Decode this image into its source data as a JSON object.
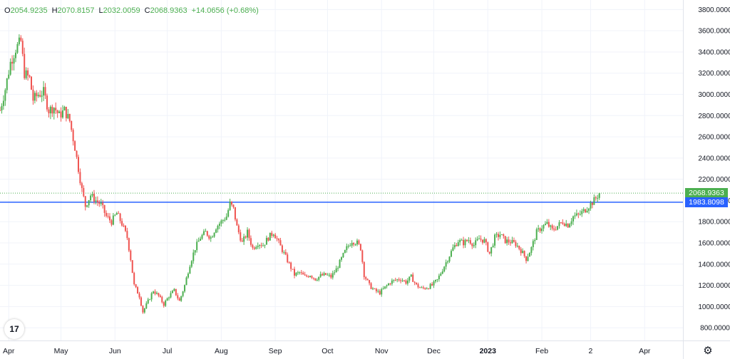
{
  "legend": {
    "open_label": "O",
    "open": "2054.9235",
    "high_label": "H",
    "high": "2070.8157",
    "low_label": "L",
    "low": "2032.0059",
    "close_label": "C",
    "close": "2068.9363",
    "change": "+14.0656 (+0.68%)"
  },
  "price_tags": {
    "last_price": "2068.9363",
    "last_price_color": "#4caf50",
    "hline_price": "1983.8098",
    "hline_color": "#2962ff"
  },
  "logo_text": "17",
  "settings_icon": "gear-icon",
  "colors": {
    "up": "#4caf50",
    "down": "#ef5350",
    "grid": "#f0f3fa",
    "axis_text": "#131722"
  },
  "chart_data": {
    "type": "candlestick",
    "y_ticks": [
      "800.0000",
      "1000.0000",
      "1200.0000",
      "1400.0000",
      "1600.0000",
      "1800.0000",
      "2000.0000",
      "2200.0000",
      "2400.0000",
      "2600.0000",
      "2800.0000",
      "3000.0000",
      "3200.0000",
      "3400.0000",
      "3600.0000",
      "3800.0000"
    ],
    "ylim": [
      680,
      3890
    ],
    "x_ticks": [
      {
        "label": "Apr",
        "day": 5
      },
      {
        "label": "May",
        "day": 35
      },
      {
        "label": "Jun",
        "day": 66
      },
      {
        "label": "Jul",
        "day": 96
      },
      {
        "label": "Aug",
        "day": 127
      },
      {
        "label": "Sep",
        "day": 158
      },
      {
        "label": "Oct",
        "day": 188
      },
      {
        "label": "Nov",
        "day": 219
      },
      {
        "label": "Dec",
        "day": 249
      },
      {
        "label": "2023",
        "day": 280
      },
      {
        "label": "Feb",
        "day": 311
      },
      {
        "label": "2",
        "day": 339
      },
      {
        "label": "Apr",
        "day": 370
      }
    ],
    "x_range_days": [
      0,
      392
    ],
    "horizontal_line": 1983.8098,
    "last_price": 2068.9363,
    "close_path": [
      [
        0,
        2850
      ],
      [
        3,
        3050
      ],
      [
        6,
        3300
      ],
      [
        9,
        3430
      ],
      [
        12,
        3500
      ],
      [
        14,
        3200
      ],
      [
        17,
        3150
      ],
      [
        19,
        2950
      ],
      [
        22,
        3000
      ],
      [
        25,
        3020
      ],
      [
        28,
        2850
      ],
      [
        31,
        2880
      ],
      [
        34,
        2800
      ],
      [
        37,
        2850
      ],
      [
        40,
        2750
      ],
      [
        43,
        2500
      ],
      [
        45,
        2300
      ],
      [
        47,
        2100
      ],
      [
        49,
        1950
      ],
      [
        52,
        2050
      ],
      [
        55,
        2000
      ],
      [
        58,
        1960
      ],
      [
        61,
        1850
      ],
      [
        64,
        1800
      ],
      [
        67,
        1880
      ],
      [
        70,
        1780
      ],
      [
        73,
        1650
      ],
      [
        75,
        1450
      ],
      [
        77,
        1200
      ],
      [
        80,
        1100
      ],
      [
        82,
        950
      ],
      [
        85,
        1050
      ],
      [
        88,
        1150
      ],
      [
        91,
        1100
      ],
      [
        94,
        1020
      ],
      [
        97,
        1100
      ],
      [
        100,
        1150
      ],
      [
        103,
        1050
      ],
      [
        106,
        1200
      ],
      [
        109,
        1400
      ],
      [
        112,
        1550
      ],
      [
        115,
        1650
      ],
      [
        118,
        1700
      ],
      [
        121,
        1650
      ],
      [
        124,
        1750
      ],
      [
        127,
        1800
      ],
      [
        130,
        1850
      ],
      [
        132,
        1970
      ],
      [
        134,
        1920
      ],
      [
        136,
        1750
      ],
      [
        139,
        1600
      ],
      [
        142,
        1700
      ],
      [
        145,
        1550
      ],
      [
        148,
        1600
      ],
      [
        151,
        1580
      ],
      [
        154,
        1650
      ],
      [
        157,
        1700
      ],
      [
        160,
        1600
      ],
      [
        163,
        1500
      ],
      [
        166,
        1400
      ],
      [
        169,
        1300
      ],
      [
        172,
        1320
      ],
      [
        175,
        1280
      ],
      [
        178,
        1300
      ],
      [
        181,
        1260
      ],
      [
        184,
        1290
      ],
      [
        187,
        1300
      ],
      [
        190,
        1280
      ],
      [
        193,
        1350
      ],
      [
        196,
        1450
      ],
      [
        199,
        1550
      ],
      [
        202,
        1620
      ],
      [
        205,
        1600
      ],
      [
        207,
        1550
      ],
      [
        209,
        1300
      ],
      [
        212,
        1200
      ],
      [
        215,
        1150
      ],
      [
        218,
        1130
      ],
      [
        221,
        1180
      ],
      [
        224,
        1230
      ],
      [
        227,
        1250
      ],
      [
        230,
        1260
      ],
      [
        233,
        1230
      ],
      [
        236,
        1280
      ],
      [
        239,
        1200
      ],
      [
        242,
        1170
      ],
      [
        245,
        1180
      ],
      [
        248,
        1200
      ],
      [
        251,
        1250
      ],
      [
        254,
        1350
      ],
      [
        257,
        1450
      ],
      [
        260,
        1550
      ],
      [
        263,
        1620
      ],
      [
        266,
        1600
      ],
      [
        269,
        1630
      ],
      [
        272,
        1580
      ],
      [
        275,
        1640
      ],
      [
        278,
        1620
      ],
      [
        281,
        1500
      ],
      [
        284,
        1650
      ],
      [
        287,
        1680
      ],
      [
        290,
        1620
      ],
      [
        293,
        1610
      ],
      [
        296,
        1590
      ],
      [
        299,
        1530
      ],
      [
        302,
        1450
      ],
      [
        305,
        1550
      ],
      [
        308,
        1700
      ],
      [
        311,
        1750
      ],
      [
        314,
        1780
      ],
      [
        317,
        1720
      ],
      [
        320,
        1760
      ],
      [
        323,
        1800
      ],
      [
        326,
        1770
      ],
      [
        329,
        1850
      ],
      [
        332,
        1860
      ],
      [
        335,
        1900
      ],
      [
        338,
        1950
      ],
      [
        341,
        2000
      ],
      [
        344,
        2069
      ]
    ]
  }
}
